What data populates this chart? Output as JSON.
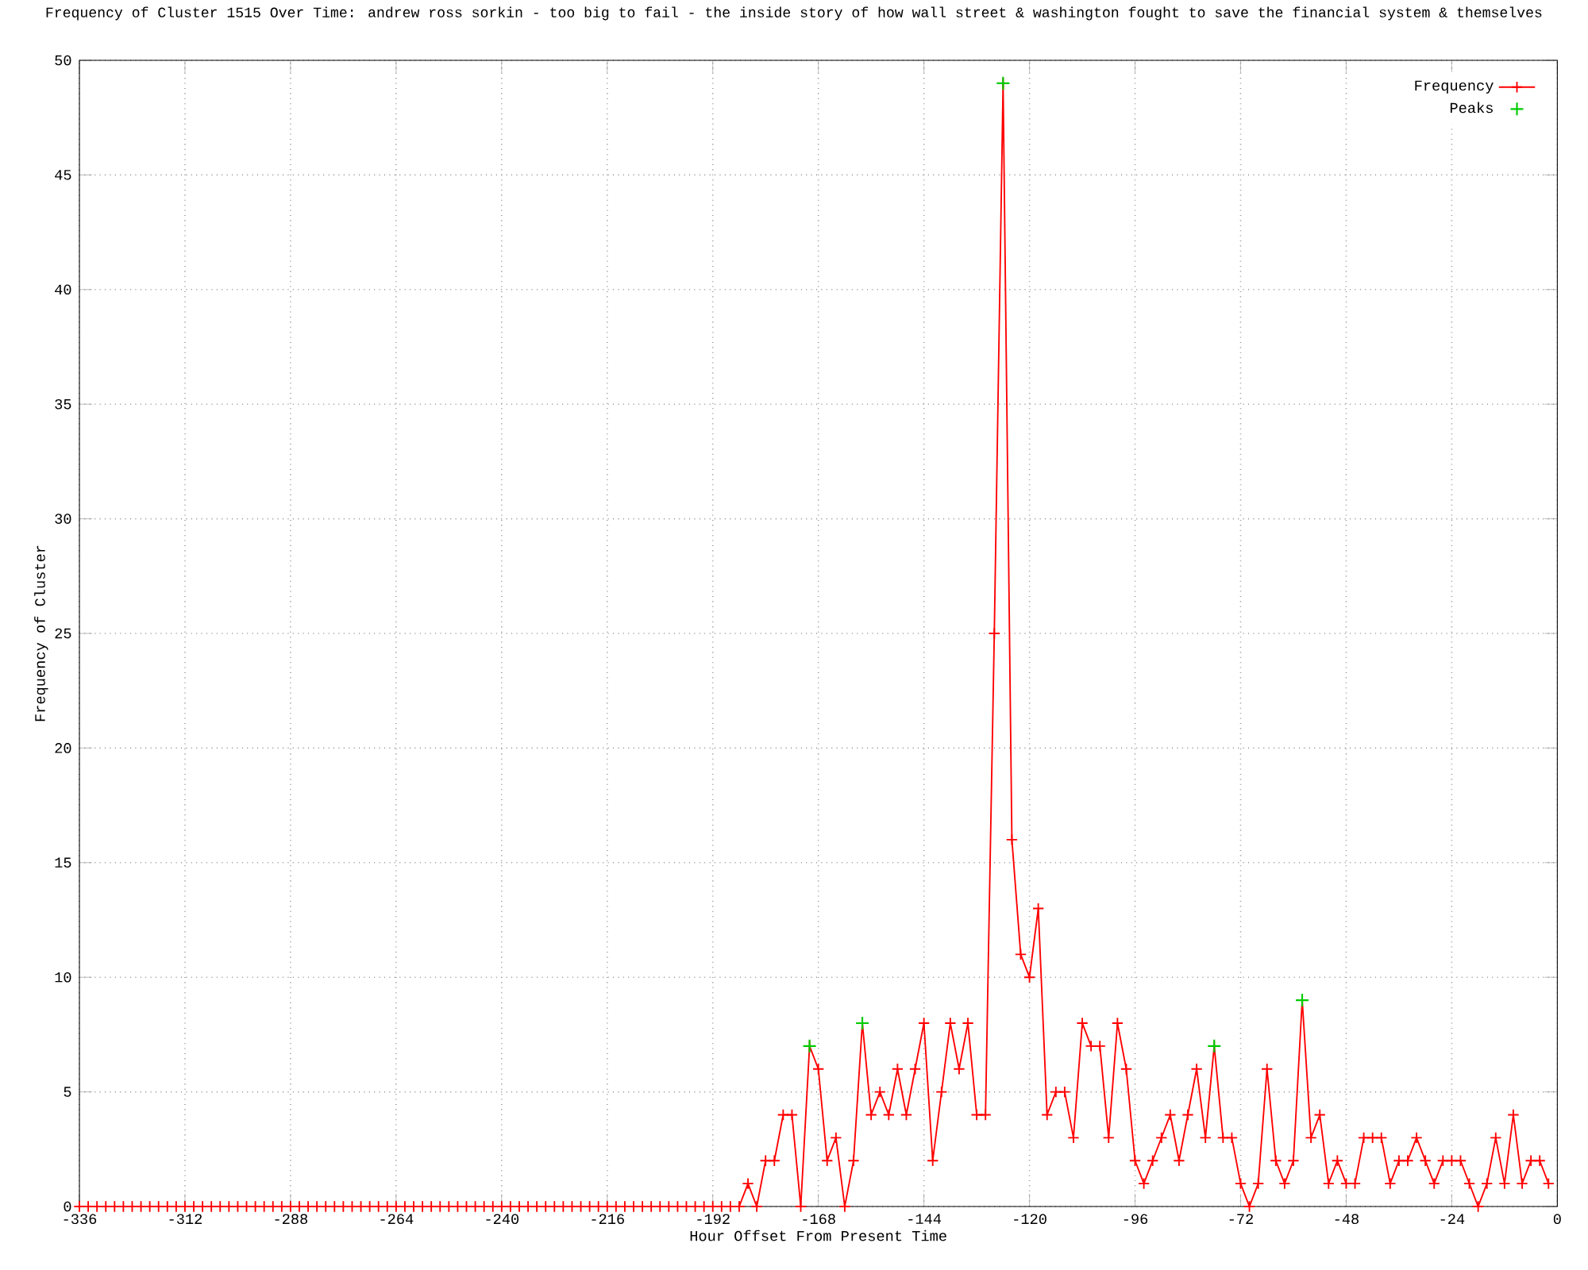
{
  "chart_data": {
    "type": "line",
    "title": "Frequency of Cluster 1515 Over Time: andrew ross sorkin - too big to fail - the inside story of how wall street & washington fought to save the financial system & themselves",
    "xlabel": "Hour Offset From Present Time",
    "ylabel": "Frequency of Cluster",
    "x": [
      -336,
      -334,
      -332,
      -330,
      -328,
      -326,
      -324,
      -322,
      -320,
      -318,
      -316,
      -314,
      -312,
      -310,
      -308,
      -306,
      -304,
      -302,
      -300,
      -298,
      -296,
      -294,
      -292,
      -290,
      -288,
      -286,
      -284,
      -282,
      -280,
      -278,
      -276,
      -274,
      -272,
      -270,
      -268,
      -266,
      -264,
      -262,
      -260,
      -258,
      -256,
      -254,
      -252,
      -250,
      -248,
      -246,
      -244,
      -242,
      -240,
      -238,
      -236,
      -234,
      -232,
      -230,
      -228,
      -226,
      -224,
      -222,
      -220,
      -218,
      -216,
      -214,
      -212,
      -210,
      -208,
      -206,
      -204,
      -202,
      -200,
      -198,
      -196,
      -194,
      -192,
      -190,
      -188,
      -186,
      -184,
      -182,
      -180,
      -178,
      -176,
      -174,
      -172,
      -170,
      -168,
      -166,
      -164,
      -162,
      -160,
      -158,
      -156,
      -154,
      -152,
      -150,
      -148,
      -146,
      -144,
      -142,
      -140,
      -138,
      -136,
      -134,
      -132,
      -130,
      -128,
      -126,
      -124,
      -122,
      -120,
      -118,
      -116,
      -114,
      -112,
      -110,
      -108,
      -106,
      -104,
      -102,
      -100,
      -98,
      -96,
      -94,
      -92,
      -90,
      -88,
      -86,
      -84,
      -82,
      -80,
      -78,
      -76,
      -74,
      -72,
      -70,
      -68,
      -66,
      -64,
      -62,
      -60,
      -58,
      -56,
      -54,
      -52,
      -50,
      -48,
      -46,
      -44,
      -42,
      -40,
      -38,
      -36,
      -34,
      -32,
      -30,
      -28,
      -26,
      -24,
      -22,
      -20,
      -18,
      -16,
      -14,
      -12,
      -10,
      -8,
      -6,
      -4,
      -2
    ],
    "series": [
      {
        "name": "Frequency",
        "color": "#ff0000",
        "marker": "cross",
        "values": [
          0,
          0,
          0,
          0,
          0,
          0,
          0,
          0,
          0,
          0,
          0,
          0,
          0,
          0,
          0,
          0,
          0,
          0,
          0,
          0,
          0,
          0,
          0,
          0,
          0,
          0,
          0,
          0,
          0,
          0,
          0,
          0,
          0,
          0,
          0,
          0,
          0,
          0,
          0,
          0,
          0,
          0,
          0,
          0,
          0,
          0,
          0,
          0,
          0,
          0,
          0,
          0,
          0,
          0,
          0,
          0,
          0,
          0,
          0,
          0,
          0,
          0,
          0,
          0,
          0,
          0,
          0,
          0,
          0,
          0,
          0,
          0,
          0,
          0,
          0,
          0,
          1,
          0,
          2,
          2,
          4,
          4,
          0,
          7,
          6,
          2,
          3,
          0,
          2,
          8,
          4,
          5,
          4,
          6,
          4,
          6,
          8,
          2,
          5,
          8,
          6,
          8,
          4,
          4,
          25,
          49,
          16,
          11,
          10,
          13,
          4,
          5,
          5,
          3,
          8,
          7,
          7,
          3,
          8,
          6,
          2,
          1,
          2,
          3,
          4,
          2,
          4,
          6,
          3,
          7,
          3,
          3,
          1,
          0,
          1,
          6,
          2,
          1,
          2,
          9,
          3,
          4,
          1,
          2,
          1,
          1,
          3,
          3,
          3,
          1,
          2,
          2,
          3,
          2,
          1,
          2,
          2,
          2,
          1,
          0,
          1,
          3,
          1,
          4,
          1,
          2,
          2,
          1
        ]
      },
      {
        "name": "Peaks",
        "type": "scatter",
        "color": "#00cc00",
        "marker": "cross",
        "x": [
          -170,
          -158,
          -126,
          -78,
          -58
        ],
        "values": [
          7,
          8,
          49,
          7,
          9
        ]
      }
    ],
    "xlim": [
      -336,
      0
    ],
    "ylim": [
      0,
      50
    ],
    "xticks": [
      -336,
      -312,
      -288,
      -264,
      -240,
      -216,
      -192,
      -168,
      -144,
      -120,
      -96,
      -72,
      -48,
      -24,
      0
    ],
    "yticks": [
      0,
      5,
      10,
      15,
      20,
      25,
      30,
      35,
      40,
      45,
      50
    ],
    "grid": true,
    "legend": "top right"
  }
}
